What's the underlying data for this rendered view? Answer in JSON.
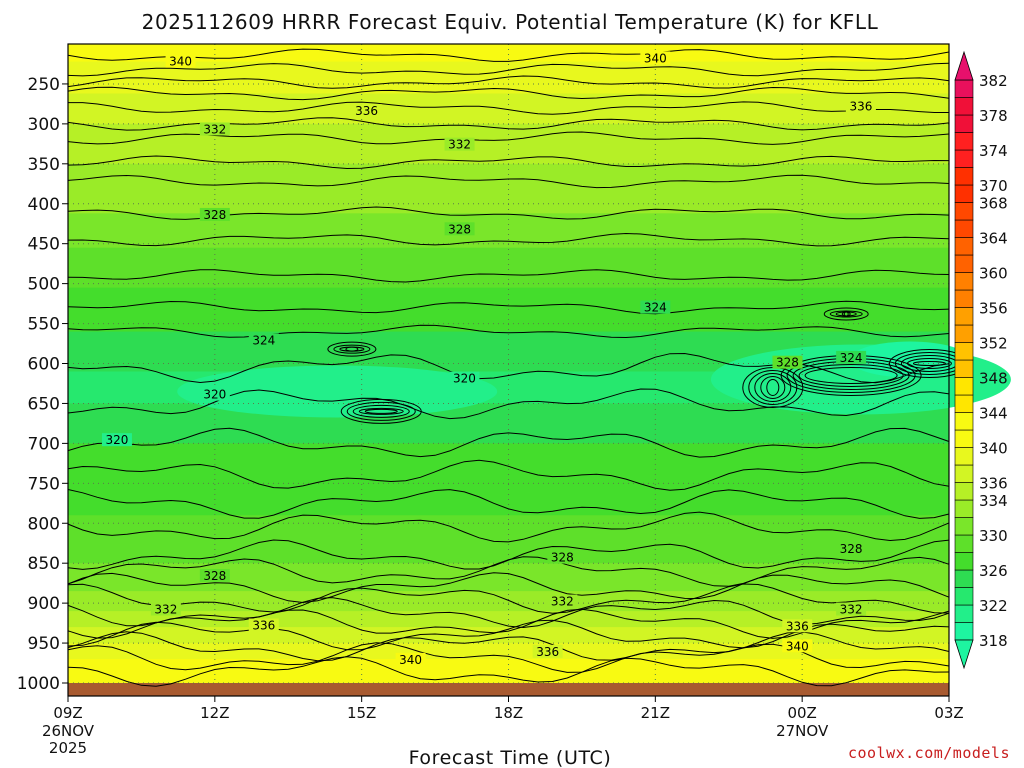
{
  "chart_data": {
    "type": "heatmap",
    "title": "2025112609 HRRR Forecast Equiv. Potential Temperature (K) for KFLL",
    "xlabel": "Forecast Time (UTC)",
    "ylabel": "",
    "x_ticks": [
      {
        "hour": 0,
        "label": "09Z",
        "sub1": "26NOV",
        "sub2": "2025"
      },
      {
        "hour": 3,
        "label": "12Z"
      },
      {
        "hour": 6,
        "label": "15Z"
      },
      {
        "hour": 9,
        "label": "18Z"
      },
      {
        "hour": 12,
        "label": "21Z"
      },
      {
        "hour": 15,
        "label": "00Z",
        "sub1": "27NOV"
      },
      {
        "hour": 18,
        "label": "03Z"
      }
    ],
    "x_range_hours": [
      0,
      18
    ],
    "y_axis": "pressure (hPa)",
    "y_ticks": [
      250,
      300,
      350,
      400,
      450,
      500,
      550,
      600,
      650,
      700,
      750,
      800,
      850,
      900,
      950,
      1000
    ],
    "y_range": [
      200,
      1030
    ],
    "colorbar": {
      "levels": [
        318,
        320,
        322,
        324,
        326,
        328,
        330,
        332,
        334,
        336,
        338,
        340,
        342,
        344,
        346,
        348,
        350,
        352,
        354,
        356,
        358,
        360,
        362,
        364,
        366,
        368,
        370,
        372,
        374,
        376,
        378,
        380,
        382
      ],
      "labels": [
        "382",
        "378",
        "374",
        "370",
        "368",
        "364",
        "360",
        "356",
        "352",
        "348",
        "344",
        "340",
        "336",
        "334",
        "330",
        "326",
        "322",
        "318"
      ],
      "label_values": [
        382,
        378,
        374,
        370,
        368,
        364,
        360,
        356,
        352,
        348,
        344,
        340,
        336,
        334,
        330,
        326,
        322,
        318
      ]
    },
    "contour_interval": 2,
    "contour_labels": [
      {
        "hour": 2.3,
        "p": 222,
        "value": "340"
      },
      {
        "hour": 12.0,
        "p": 218,
        "value": "340"
      },
      {
        "hour": 6.1,
        "p": 284,
        "value": "336"
      },
      {
        "hour": 16.2,
        "p": 278,
        "value": "336"
      },
      {
        "hour": 3.0,
        "p": 307,
        "value": "332"
      },
      {
        "hour": 8.0,
        "p": 326,
        "value": "332"
      },
      {
        "hour": 3.0,
        "p": 414,
        "value": "328"
      },
      {
        "hour": 8.0,
        "p": 432,
        "value": "328"
      },
      {
        "hour": 12.0,
        "p": 530,
        "value": "324"
      },
      {
        "hour": 4.0,
        "p": 571,
        "value": "324"
      },
      {
        "hour": 3.0,
        "p": 639,
        "value": "320"
      },
      {
        "hour": 8.1,
        "p": 619,
        "value": "320"
      },
      {
        "hour": 1.0,
        "p": 696,
        "value": "320"
      },
      {
        "hour": 14.7,
        "p": 599,
        "value": "328"
      },
      {
        "hour": 16.0,
        "p": 593,
        "value": "324"
      },
      {
        "hour": 3.0,
        "p": 866,
        "value": "328"
      },
      {
        "hour": 10.1,
        "p": 843,
        "value": "328"
      },
      {
        "hour": 16.0,
        "p": 832,
        "value": "328"
      },
      {
        "hour": 2.0,
        "p": 908,
        "value": "332"
      },
      {
        "hour": 10.1,
        "p": 898,
        "value": "332"
      },
      {
        "hour": 16.0,
        "p": 908,
        "value": "332"
      },
      {
        "hour": 4.0,
        "p": 928,
        "value": "336"
      },
      {
        "hour": 9.8,
        "p": 961,
        "value": "336"
      },
      {
        "hour": 14.9,
        "p": 929,
        "value": "336"
      },
      {
        "hour": 7.0,
        "p": 971,
        "value": "340"
      },
      {
        "hour": 14.9,
        "p": 954,
        "value": "340"
      }
    ]
  },
  "credit": "coolwx.com/models"
}
